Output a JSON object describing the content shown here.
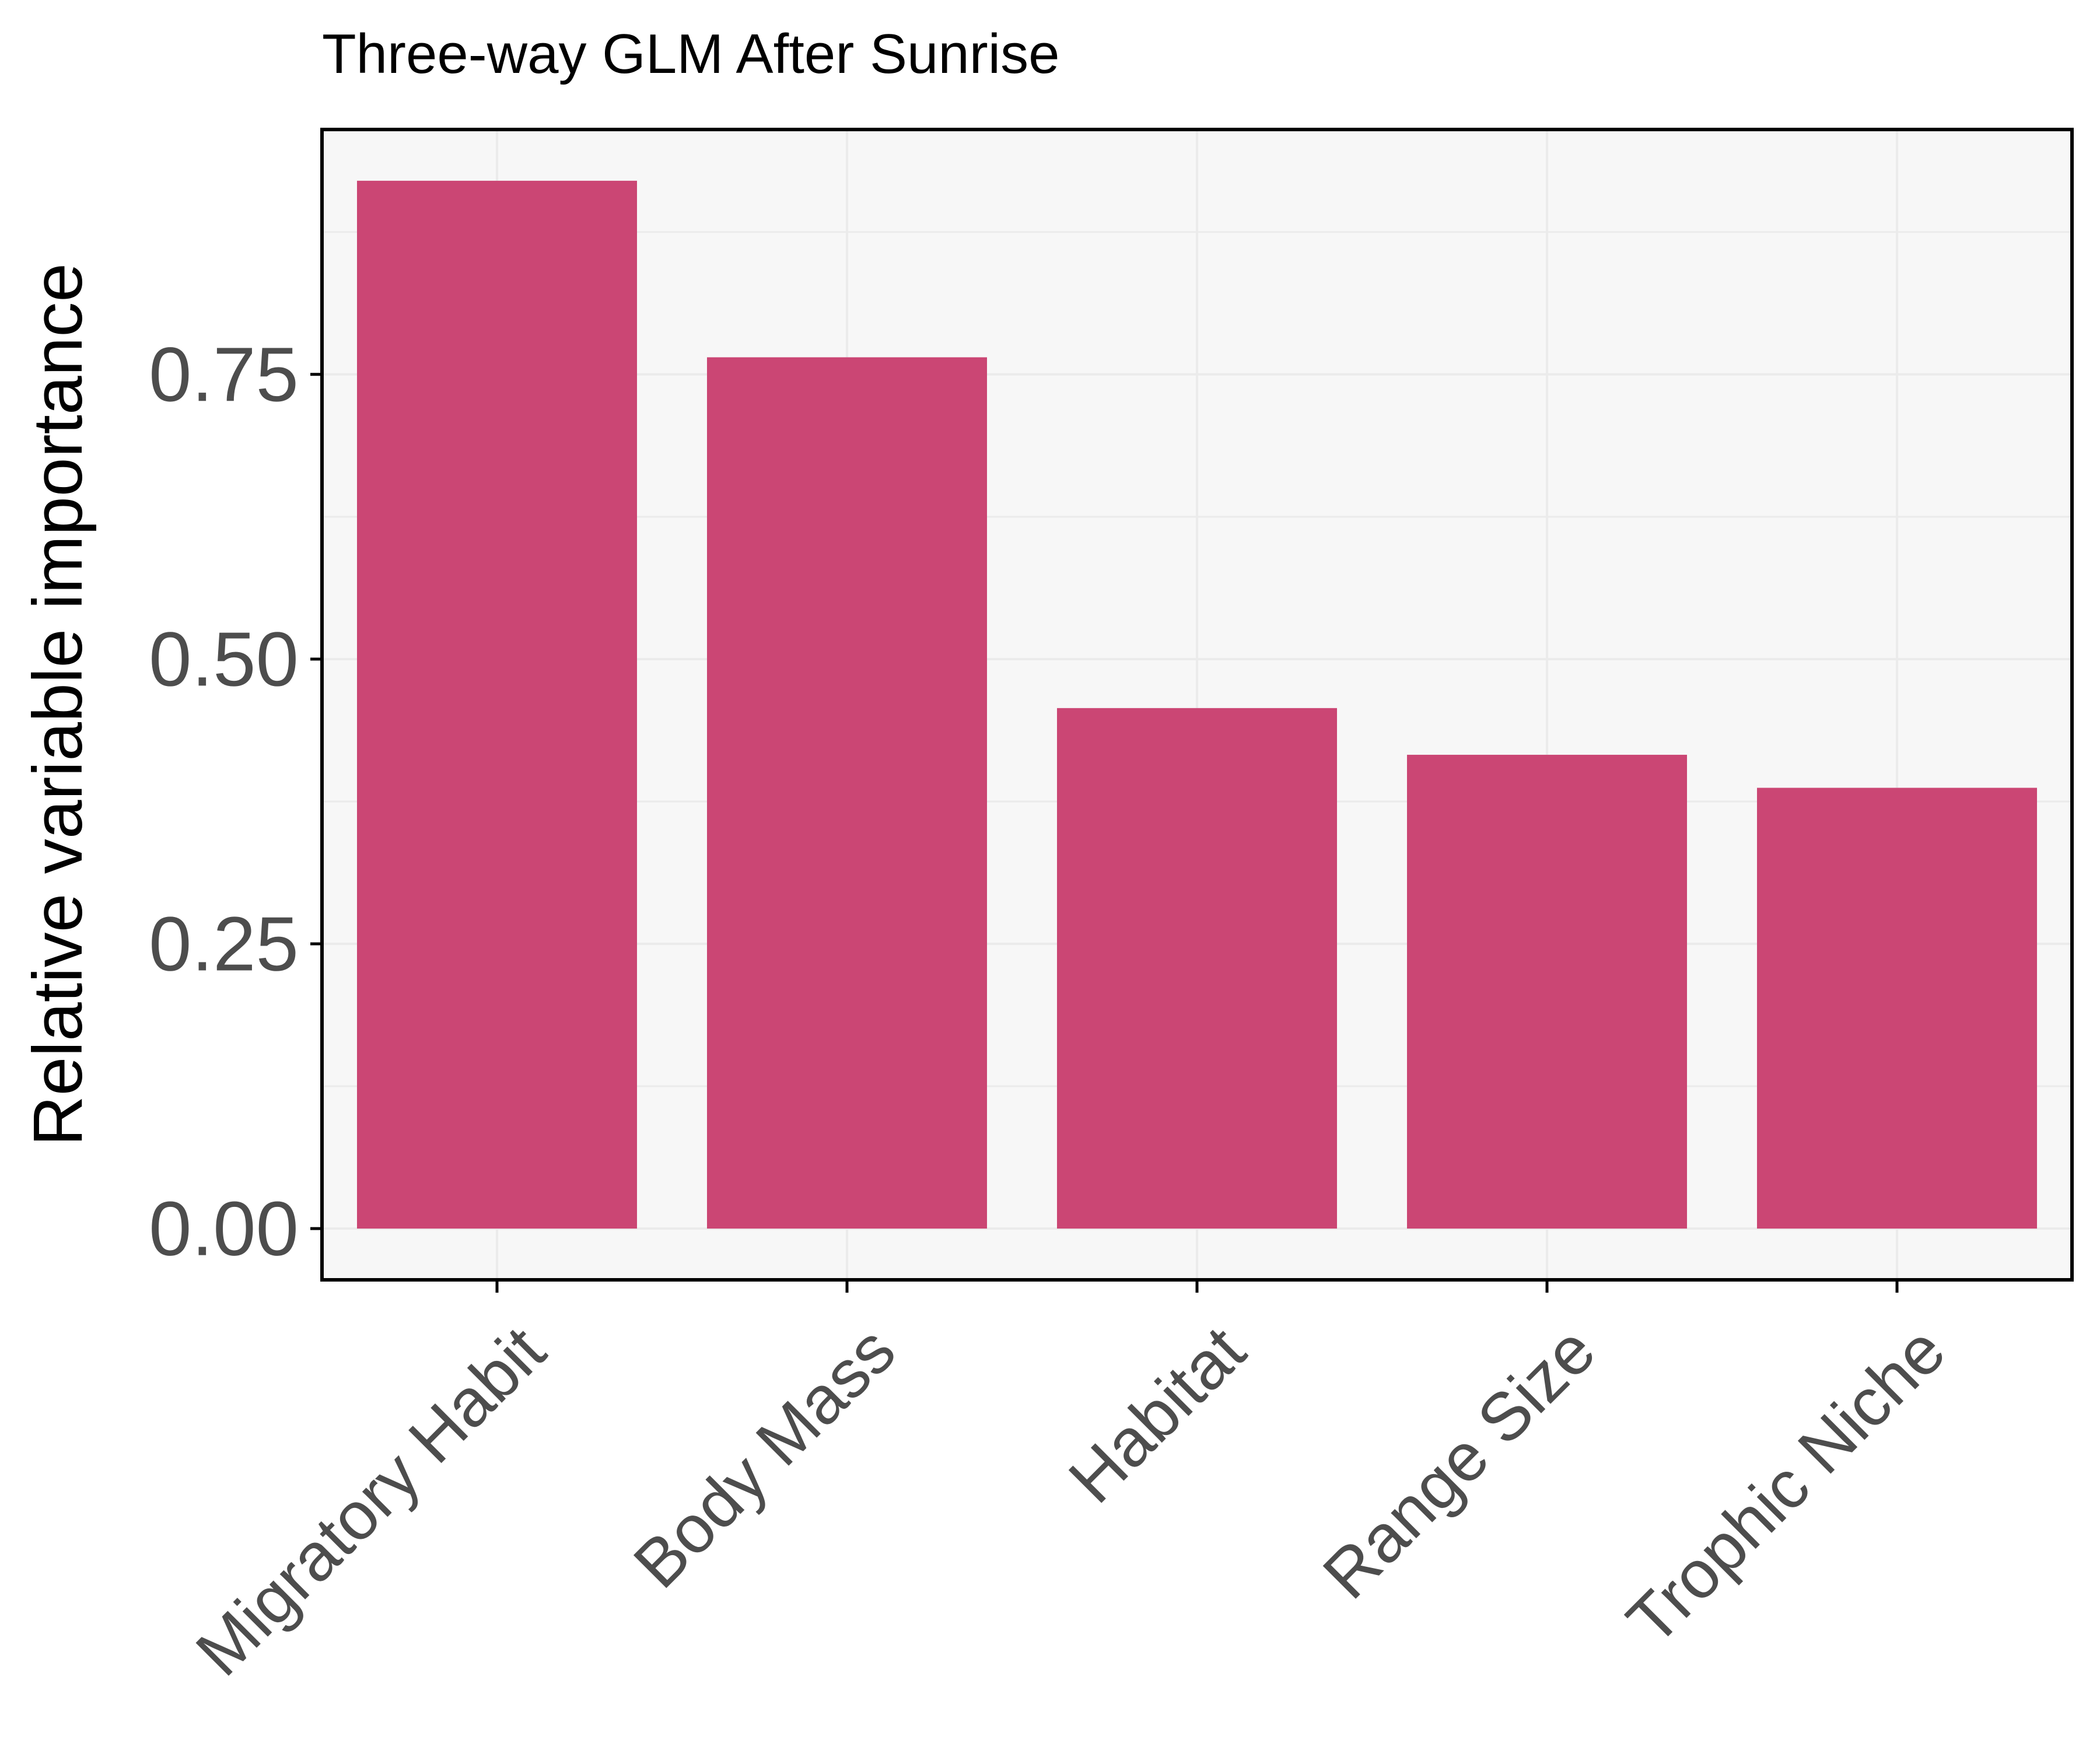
{
  "chart_data": {
    "type": "bar",
    "title": "Three-way GLM After Sunrise",
    "xlabel": "",
    "ylabel": "Relative variable importance",
    "categories": [
      "Migratory Habit",
      "Body Mass",
      "Habitat",
      "Range Size",
      "Trophic Niche"
    ],
    "values": [
      0.92,
      0.765,
      0.457,
      0.416,
      0.387
    ],
    "yticks": [
      "0.00",
      "0.25",
      "0.50",
      "0.75"
    ],
    "ylim": [
      -0.045,
      0.965
    ],
    "grid": true,
    "legend": "none",
    "bar_color": "#CB4674",
    "panel_background": "#F7F7F7",
    "gridline_color": "#EBEBEB"
  }
}
